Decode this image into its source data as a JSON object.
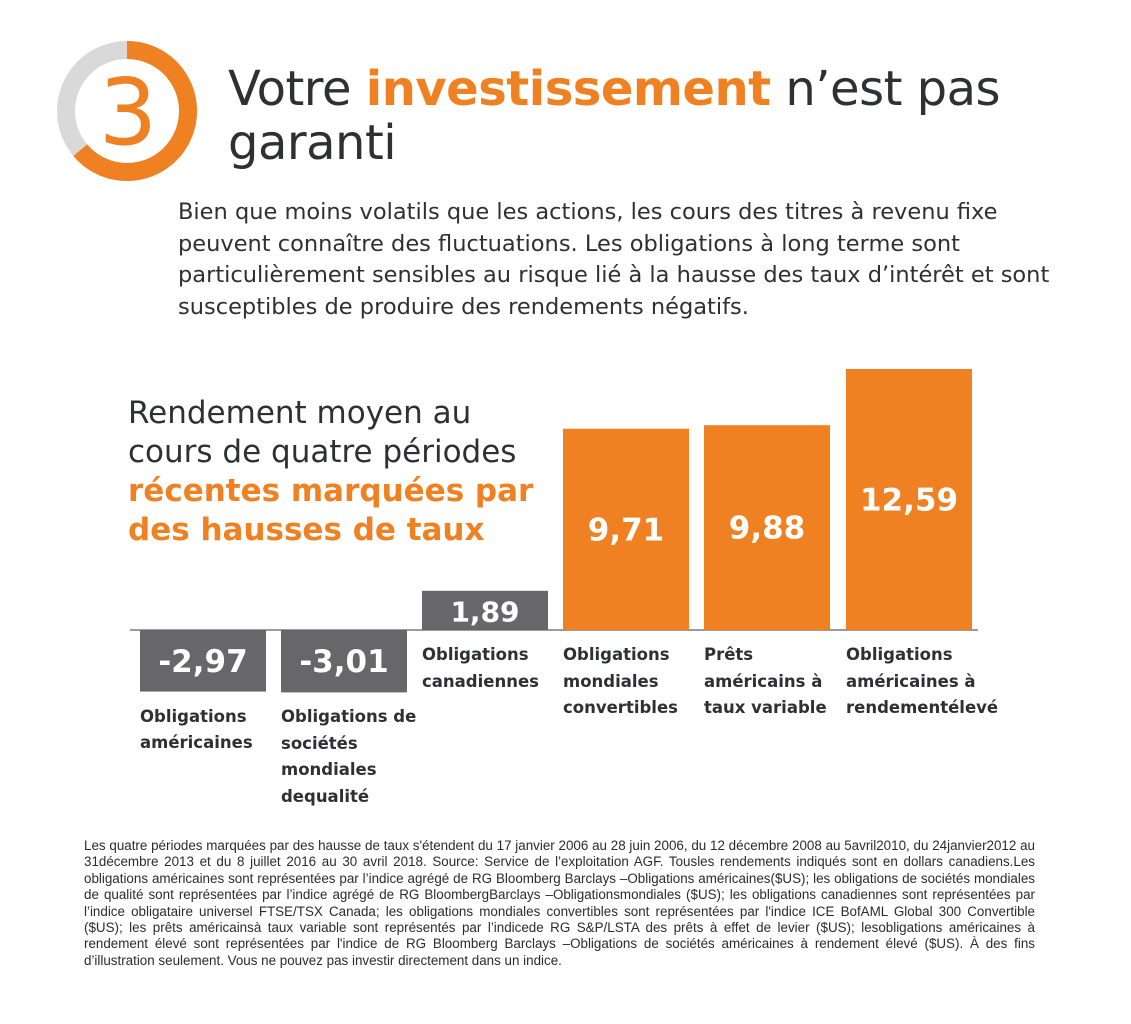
{
  "header": {
    "number": "3",
    "title_prefix": "Votre ",
    "title_accent": "investissement",
    "title_suffix": " n’est pas garanti"
  },
  "intro": "Bien que moins volatils que les actions, les cours des titres à revenu fixe peuvent connaître des fluctuations. Les obligations à long terme sont particulièrement sensibles au risque lié à la hausse des taux d’intérêt et sont susceptibles de produire des rendements négatifs.",
  "colors": {
    "accent": "#f08122",
    "negative_bar": "#676769",
    "ring_grey": "#d9d9d9",
    "text": "#2f3034"
  },
  "chart_data": {
    "type": "bar",
    "title_normal": "Rendement moyen au cours de quatre périodes",
    "title_accent": "récentes marquées par des hausses de taux",
    "categories": [
      "Obligations américaines",
      "Obligations de sociétés mondiales dequalité",
      "Obligations canadiennes",
      "Obligations mondiales convertibles",
      "Prêts américains à taux variable",
      "Obligations américaines à rendementélevé"
    ],
    "values": [
      -2.97,
      -3.01,
      1.89,
      9.71,
      9.88,
      12.59
    ],
    "value_labels": [
      "-2,97",
      "-3,01",
      "1,89",
      "9,71",
      "9,88",
      "12,59"
    ],
    "bar_colors": [
      "#676769",
      "#676769",
      "#676769",
      "#f08122",
      "#f08122",
      "#f08122"
    ],
    "grid": false,
    "legend": "none"
  },
  "footnote": "Les quatre périodes marquées par des hausse de taux s'étendent du 17 janvier 2006 au 28 juin 2006, du 12 décembre 2008 au 5avril2010, du 24janvier2012 au 31décembre 2013 et du 8 juillet 2016 au 30 avril 2018. Source: Service de l’exploitation AGF. Tousles rendements indiqués sont en dollars canadiens.Les obligations américaines sont représentées par l’indice agrégé de RG Bloomberg Barclays –Obligations américaines($US); les obligations de sociétés mondiales de qualité sont représentées par l’indice agrégé de RG BloombergBarclays –Obligationsmondiales ($US); les obligations canadiennes sont représentées par l’indice obligataire universel FTSE/TSX Canada; les obligations mondiales convertibles sont représentées par l'indice ICE BofAML Global 300 Convertible ($US); les prêts américainsà taux variable sont représentés par l’indicede RG S&P/LSTA des prêts à effet de levier ($US); lesobligations américaines à rendement élevé sont représentées par l'indice de RG Bloomberg Barclays –Obligations de sociétés américaines à rendement élevé ($US). À des fins d’illustration seulement. Vous ne pouvez pas investir directement dans un indice."
}
